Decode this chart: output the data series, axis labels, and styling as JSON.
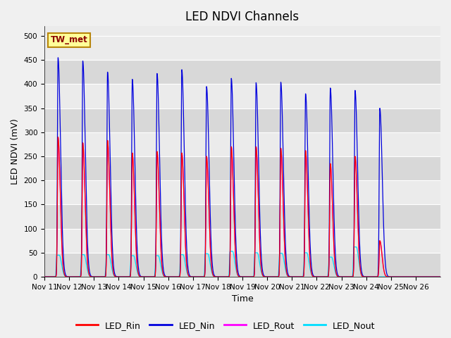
{
  "title": "LED NDVI Channels",
  "xlabel": "Time",
  "ylabel": "LED NDVI (mV)",
  "annotation": "TW_met",
  "ylim": [
    0,
    520
  ],
  "yticks": [
    0,
    50,
    100,
    150,
    200,
    250,
    300,
    350,
    400,
    450,
    500
  ],
  "x_labels": [
    "Nov 11",
    "Nov 12",
    "Nov 13",
    "Nov 14",
    "Nov 15",
    "Nov 16",
    "Nov 17",
    "Nov 18",
    "Nov 19",
    "Nov 20",
    "Nov 21",
    "Nov 22",
    "Nov 23",
    "Nov 24",
    "Nov 25",
    "Nov 26"
  ],
  "num_days": 16,
  "colors": {
    "LED_Rin": "#ff0000",
    "LED_Nin": "#0000dd",
    "LED_Rout": "#ff00ff",
    "LED_Nout": "#00ddff"
  },
  "background_color": "#f0f0f0",
  "plot_bg_light": "#ebebeb",
  "plot_bg_dark": "#d8d8d8",
  "spike_peaks_Nin": [
    455,
    448,
    425,
    410,
    422,
    430,
    395,
    412,
    403,
    404,
    380,
    392,
    387,
    350,
    0
  ],
  "spike_peaks_Rin": [
    290,
    278,
    283,
    257,
    260,
    257,
    250,
    270,
    270,
    267,
    262,
    235,
    250,
    75,
    0
  ],
  "spike_peaks_Rout": [
    290,
    278,
    283,
    257,
    260,
    257,
    250,
    270,
    270,
    267,
    262,
    235,
    250,
    75,
    0
  ],
  "spike_peaks_Nout": [
    45,
    46,
    46,
    44,
    44,
    46,
    48,
    53,
    50,
    49,
    50,
    41,
    62,
    0,
    0
  ],
  "title_fontsize": 12,
  "label_fontsize": 9,
  "tick_fontsize": 7.5
}
